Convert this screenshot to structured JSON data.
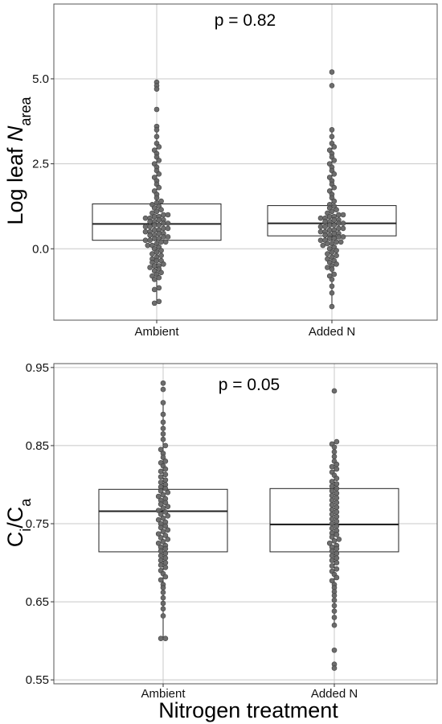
{
  "chart_data": [
    {
      "type": "box-dotplot",
      "annotation": "p = 0.82",
      "ylabel": {
        "prefix": "Log leaf ",
        "italic": "N",
        "sub": "area"
      },
      "xlabel": "",
      "ylim": [
        -2.1,
        7.2
      ],
      "yticks": [
        0.0,
        2.5,
        5.0
      ],
      "ytick_labels": [
        "0.0",
        "2.5",
        "5.0"
      ],
      "grid": true,
      "categories": [
        "Ambient",
        "Added N"
      ],
      "boxes": [
        {
          "category": "Ambient",
          "q1": 0.25,
          "median": 0.73,
          "q3": 1.32,
          "whisker_low": -1.6,
          "whisker_high": 3.6
        },
        {
          "category": "Added N",
          "q1": 0.38,
          "median": 0.75,
          "q3": 1.27,
          "whisker_low": -1.7,
          "whisker_high": 3.5
        }
      ],
      "points": [
        {
          "category": "Ambient",
          "values": [
            -1.6,
            -1.55,
            -1.2,
            -1.15,
            -0.9,
            -0.85,
            -0.8,
            -0.75,
            -0.7,
            -0.65,
            -0.6,
            -0.55,
            -0.5,
            -0.5,
            -0.45,
            -0.4,
            -0.35,
            -0.35,
            -0.3,
            -0.25,
            -0.2,
            -0.15,
            -0.1,
            -0.05,
            0.0,
            0.05,
            0.1,
            0.1,
            0.15,
            0.2,
            0.2,
            0.25,
            0.25,
            0.3,
            0.3,
            0.35,
            0.35,
            0.4,
            0.4,
            0.45,
            0.45,
            0.5,
            0.5,
            0.55,
            0.55,
            0.6,
            0.6,
            0.65,
            0.65,
            0.7,
            0.7,
            0.75,
            0.75,
            0.8,
            0.8,
            0.85,
            0.85,
            0.9,
            0.9,
            0.95,
            0.95,
            1.0,
            1.0,
            1.05,
            1.1,
            1.15,
            1.2,
            1.25,
            1.3,
            1.35,
            1.4,
            1.5,
            1.6,
            1.7,
            1.8,
            1.9,
            2.0,
            2.1,
            2.2,
            2.3,
            2.4,
            2.5,
            2.6,
            2.7,
            2.8,
            2.9,
            3.0,
            3.1,
            3.3,
            3.5,
            3.6,
            4.1,
            4.7,
            4.8,
            4.9
          ]
        },
        {
          "category": "Added N",
          "values": [
            -1.7,
            -1.3,
            -1.1,
            -0.9,
            -0.8,
            -0.75,
            -0.6,
            -0.55,
            -0.5,
            -0.45,
            -0.4,
            -0.35,
            -0.3,
            -0.25,
            -0.2,
            -0.15,
            -0.1,
            -0.05,
            0.0,
            0.05,
            0.1,
            0.15,
            0.15,
            0.2,
            0.2,
            0.25,
            0.25,
            0.3,
            0.3,
            0.35,
            0.35,
            0.4,
            0.4,
            0.45,
            0.45,
            0.5,
            0.5,
            0.55,
            0.55,
            0.6,
            0.6,
            0.65,
            0.65,
            0.7,
            0.7,
            0.75,
            0.75,
            0.8,
            0.8,
            0.85,
            0.85,
            0.9,
            0.9,
            0.95,
            0.95,
            1.0,
            1.0,
            1.05,
            1.1,
            1.15,
            1.2,
            1.25,
            1.3,
            1.4,
            1.5,
            1.6,
            1.7,
            1.8,
            1.9,
            2.0,
            2.1,
            2.2,
            2.3,
            2.4,
            2.5,
            2.6,
            2.7,
            2.8,
            2.9,
            3.0,
            3.1,
            3.3,
            3.5,
            4.8,
            5.2
          ]
        }
      ]
    },
    {
      "type": "box-dotplot",
      "annotation": "p = 0.05",
      "ylabel": {
        "c1": "C",
        "sub1": "i",
        "slash": "/",
        "c2": "C",
        "sub2": "a"
      },
      "xlabel": "Nitrogen treatment",
      "ylim": [
        0.545,
        0.955
      ],
      "yticks": [
        0.55,
        0.65,
        0.75,
        0.85,
        0.95
      ],
      "ytick_labels": [
        "0.55",
        "0.65",
        "0.75",
        "0.85",
        "0.95"
      ],
      "grid": true,
      "categories": [
        "Ambient",
        "Added N"
      ],
      "boxes": [
        {
          "category": "Ambient",
          "q1": 0.714,
          "median": 0.766,
          "q3": 0.794,
          "whisker_low": 0.603,
          "whisker_high": 0.905
        },
        {
          "category": "Added N",
          "q1": 0.714,
          "median": 0.749,
          "q3": 0.795,
          "whisker_low": 0.62,
          "whisker_high": 0.855
        }
      ],
      "points": [
        {
          "category": "Ambient",
          "values": [
            0.603,
            0.603,
            0.632,
            0.641,
            0.648,
            0.655,
            0.662,
            0.668,
            0.672,
            0.678,
            0.682,
            0.686,
            0.69,
            0.694,
            0.697,
            0.7,
            0.703,
            0.706,
            0.709,
            0.712,
            0.715,
            0.718,
            0.72,
            0.722,
            0.725,
            0.727,
            0.73,
            0.732,
            0.735,
            0.737,
            0.74,
            0.742,
            0.745,
            0.747,
            0.75,
            0.752,
            0.755,
            0.757,
            0.76,
            0.762,
            0.765,
            0.767,
            0.77,
            0.772,
            0.775,
            0.777,
            0.78,
            0.782,
            0.785,
            0.787,
            0.79,
            0.792,
            0.795,
            0.797,
            0.8,
            0.803,
            0.806,
            0.81,
            0.813,
            0.817,
            0.82,
            0.824,
            0.828,
            0.83,
            0.835,
            0.84,
            0.845,
            0.85,
            0.858,
            0.865,
            0.872,
            0.88,
            0.89,
            0.905,
            0.922,
            0.93
          ]
        },
        {
          "category": "Added N",
          "values": [
            0.565,
            0.57,
            0.588,
            0.62,
            0.63,
            0.638,
            0.645,
            0.652,
            0.658,
            0.663,
            0.668,
            0.672,
            0.677,
            0.681,
            0.685,
            0.689,
            0.692,
            0.696,
            0.7,
            0.703,
            0.706,
            0.709,
            0.712,
            0.715,
            0.718,
            0.72,
            0.722,
            0.725,
            0.728,
            0.73,
            0.733,
            0.736,
            0.738,
            0.741,
            0.744,
            0.747,
            0.75,
            0.753,
            0.756,
            0.759,
            0.762,
            0.765,
            0.768,
            0.771,
            0.774,
            0.777,
            0.78,
            0.783,
            0.786,
            0.789,
            0.792,
            0.795,
            0.798,
            0.801,
            0.804,
            0.808,
            0.812,
            0.816,
            0.82,
            0.823,
            0.826,
            0.83,
            0.836,
            0.842,
            0.848,
            0.852,
            0.855,
            0.92
          ]
        }
      ]
    }
  ],
  "style": {
    "grid_color": "#c8c8c8",
    "border_color": "#555555",
    "dot_fill": "#666666",
    "dot_stroke": "#404040",
    "box_stroke": "#222222"
  }
}
